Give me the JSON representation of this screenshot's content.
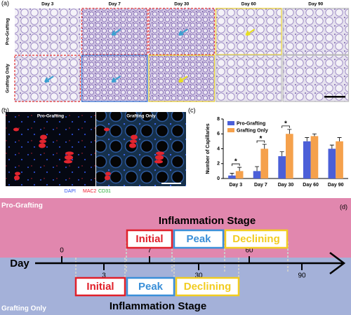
{
  "panel_a": {
    "label": "(a)",
    "columns": [
      "Day 3",
      "Day 7",
      "Day 30",
      "Day 60",
      "Day 90"
    ],
    "rows": [
      "Pro-Grafting",
      "Grafting Only"
    ]
  },
  "panel_b": {
    "label": "(b)",
    "images": [
      "Pro-Grafting",
      "Grafting Only"
    ],
    "stains": [
      "DAPI",
      "MAC2",
      "CD31"
    ]
  },
  "chart_label": "(c)",
  "chart_data": {
    "type": "bar",
    "ylabel": "Number of Capillaries",
    "categories": [
      "Day 3",
      "Day 7",
      "Day 30",
      "Day 60",
      "Day 90"
    ],
    "series": [
      {
        "name": "Pro-Grafting",
        "color": "#4b5fd8",
        "values": [
          0.4,
          1,
          3,
          5,
          4
        ],
        "errors": [
          0.3,
          0.6,
          0.6,
          0.5,
          0.5
        ]
      },
      {
        "name": "Grafting Only",
        "color": "#f5a14c",
        "values": [
          1,
          4,
          6,
          5.7,
          5
        ],
        "errors": [
          0.5,
          0.6,
          0.6,
          0.3,
          0.5
        ]
      }
    ],
    "annotations": [
      {
        "text": "*",
        "x": "Day 3"
      },
      {
        "text": "*",
        "x": "Day 7"
      },
      {
        "text": "*",
        "x": "Day 30"
      }
    ],
    "ylim": [
      0,
      8
    ],
    "yticks": [
      0,
      2,
      4,
      6,
      8
    ],
    "legend": "upper left"
  },
  "panel_d": {
    "label": "(d)",
    "top_group": "Pro-Grafting",
    "bottom_group": "Grafting Only",
    "axis": "Day",
    "ticks": [
      "0",
      "3",
      "7",
      "30",
      "60",
      "90"
    ],
    "top_stage": {
      "title": "Inflammation Stage",
      "phases": [
        "Initial",
        "Peak",
        "Declining"
      ]
    },
    "bottom_stage": {
      "title": "Inflammation Stage",
      "phases": [
        "Initial",
        "Peak",
        "Declining"
      ]
    }
  }
}
